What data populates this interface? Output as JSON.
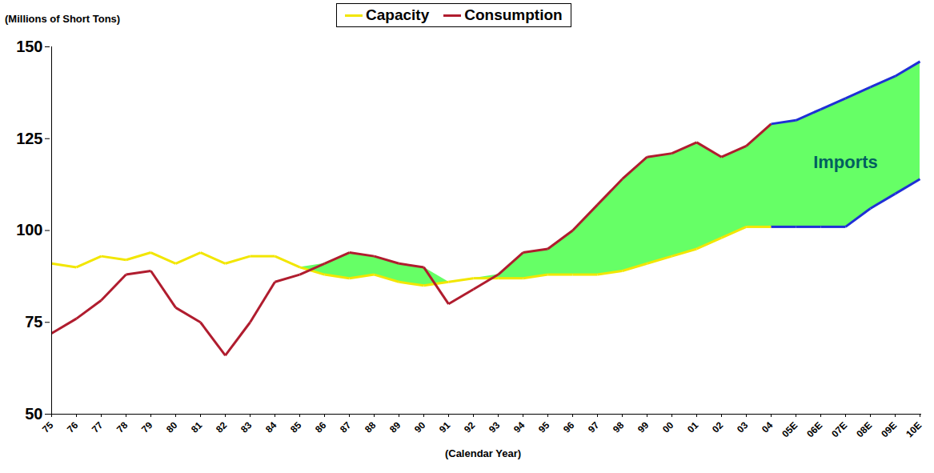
{
  "chart_data": {
    "type": "line",
    "ylabel": "(Millions of Short Tons)",
    "xlabel": "(Calendar Year)",
    "categories": [
      "75",
      "76",
      "77",
      "78",
      "79",
      "80",
      "81",
      "82",
      "83",
      "84",
      "85",
      "86",
      "87",
      "88",
      "89",
      "90",
      "91",
      "92",
      "93",
      "94",
      "95",
      "96",
      "97",
      "98",
      "99",
      "00",
      "01",
      "02",
      "03",
      "04",
      "05E",
      "06E",
      "07E",
      "08E",
      "09E",
      "10E"
    ],
    "ylim": [
      50,
      150
    ],
    "yticks": [
      50,
      75,
      100,
      125,
      150
    ],
    "grid": false,
    "legend": "top",
    "series": [
      {
        "name": "Capacity",
        "color": "#f2e600",
        "colors": [
          "#f2e600",
          "#f2e600",
          "#f2e600",
          "#f2e600",
          "#f2e600",
          "#f2e600",
          "#f2e600",
          "#f2e600",
          "#f2e600",
          "#f2e600",
          "#f2e600",
          "#f2e600",
          "#f2e600",
          "#f2e600",
          "#f2e600",
          "#f2e600",
          "#f2e600",
          "#f2e600",
          "#f2e600",
          "#f2e600",
          "#f2e600",
          "#f2e600",
          "#f2e600",
          "#f2e600",
          "#f2e600",
          "#f2e600",
          "#f2e600",
          "#f2e600",
          "#f2e600",
          "#f2e600",
          "#1f2fd6",
          "#1f2fd6",
          "#1f2fd6",
          "#1f2fd6",
          "#1f2fd6",
          "#1f2fd6"
        ],
        "values": [
          91,
          90,
          93,
          92,
          94,
          91,
          94,
          91,
          93,
          93,
          90,
          88,
          87,
          88,
          86,
          85,
          86,
          87,
          87,
          87,
          88,
          88,
          88,
          89,
          91,
          93,
          95,
          98,
          101,
          101,
          101,
          101,
          101,
          106,
          110,
          114
        ]
      },
      {
        "name": "Consumption",
        "color": "#b01c2e",
        "colors": [
          "#b01c2e",
          "#b01c2e",
          "#b01c2e",
          "#b01c2e",
          "#b01c2e",
          "#b01c2e",
          "#b01c2e",
          "#b01c2e",
          "#b01c2e",
          "#b01c2e",
          "#b01c2e",
          "#b01c2e",
          "#b01c2e",
          "#b01c2e",
          "#b01c2e",
          "#b01c2e",
          "#b01c2e",
          "#b01c2e",
          "#b01c2e",
          "#b01c2e",
          "#b01c2e",
          "#b01c2e",
          "#b01c2e",
          "#b01c2e",
          "#b01c2e",
          "#b01c2e",
          "#b01c2e",
          "#b01c2e",
          "#b01c2e",
          "#b01c2e",
          "#1f2fd6",
          "#1f2fd6",
          "#1f2fd6",
          "#1f2fd6",
          "#1f2fd6",
          "#1f2fd6"
        ],
        "values": [
          72,
          76,
          81,
          88,
          89,
          79,
          75,
          66,
          75,
          86,
          88,
          91,
          94,
          93,
          91,
          90,
          80,
          84,
          88,
          94,
          95,
          100,
          107,
          114,
          120,
          121,
          124,
          120,
          123,
          129,
          130,
          133,
          136,
          139,
          142,
          146
        ]
      }
    ],
    "fill": {
      "between": [
        "Consumption",
        "Capacity"
      ],
      "label": "Imports",
      "color": "#66ff66"
    }
  }
}
